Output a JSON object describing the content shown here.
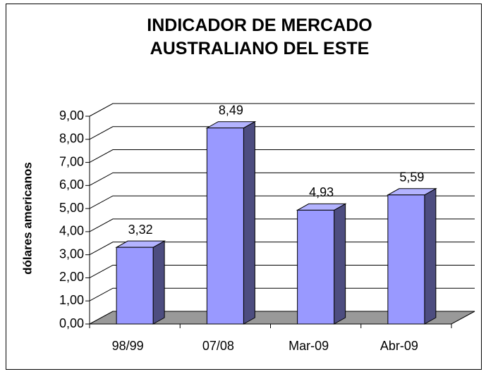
{
  "chart_data": {
    "type": "bar3d",
    "title": "INDICADOR DE MERCADO AUSTRALIANO DEL ESTE",
    "y_label": "dólares americanos",
    "categories": [
      "98/99",
      "07/08",
      "Mar-09",
      "Abr-09"
    ],
    "values": [
      3.32,
      8.49,
      4.93,
      5.59
    ],
    "value_labels": [
      "3,32",
      "8,49",
      "4,93",
      "5,59"
    ],
    "color": "#9999ff",
    "ylim": [
      0,
      9
    ],
    "yticks": [
      {
        "value": 0,
        "label": "0,00"
      },
      {
        "value": 1,
        "label": "1,00"
      },
      {
        "value": 2,
        "label": "2,00"
      },
      {
        "value": 3,
        "label": "3,00"
      },
      {
        "value": 4,
        "label": "4,00"
      },
      {
        "value": 5,
        "label": "5,00"
      },
      {
        "value": 6,
        "label": "6,00"
      },
      {
        "value": 7,
        "label": "7,00"
      },
      {
        "value": 8,
        "label": "8,00"
      },
      {
        "value": 9,
        "label": "9,00"
      }
    ],
    "grid": true
  }
}
